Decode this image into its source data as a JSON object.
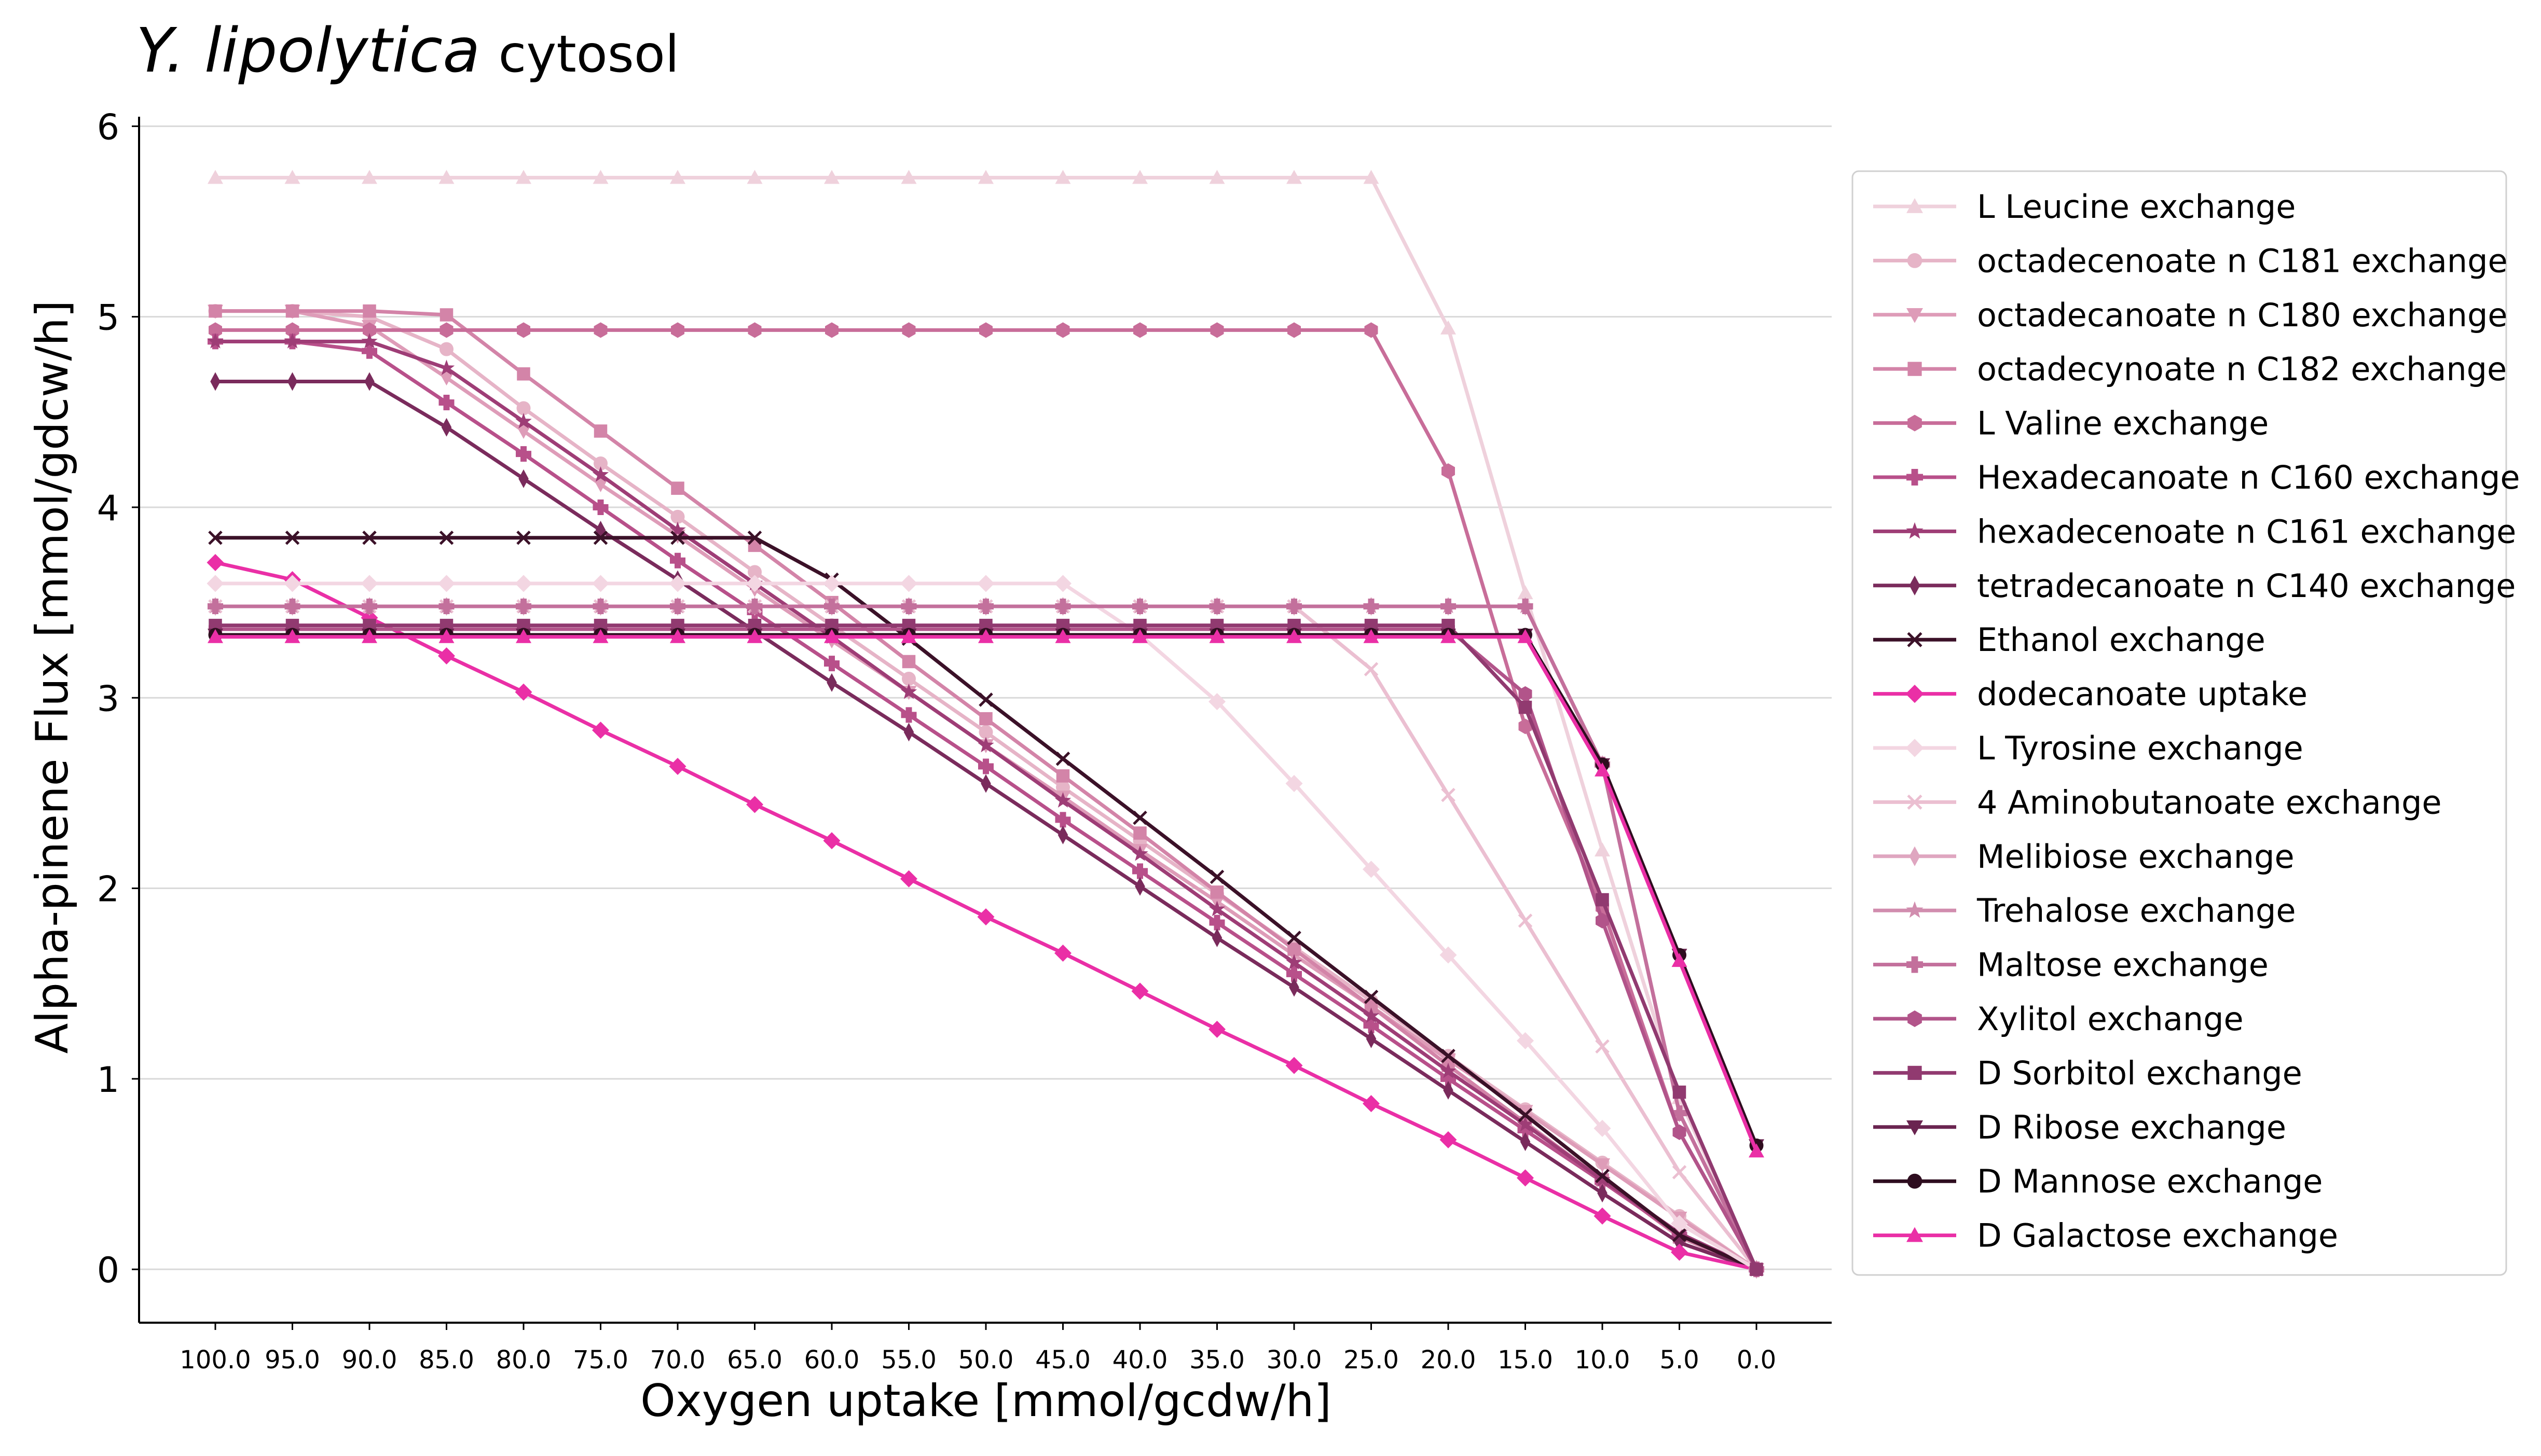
{
  "chart_data": {
    "type": "line",
    "title_species": "Y. lipolytica",
    "title_suffix": "cytosol",
    "xlabel": "Oxygen uptake [mmol/gcdw/h]",
    "ylabel": "Alpha-pinene Flux [mmol/gdcw/h]",
    "categories": [
      "100.0",
      "95.0",
      "90.0",
      "85.0",
      "80.0",
      "75.0",
      "70.0",
      "65.0",
      "60.0",
      "55.0",
      "50.0",
      "45.0",
      "40.0",
      "35.0",
      "30.0",
      "25.0",
      "20.0",
      "15.0",
      "10.0",
      "5.0",
      "0.0"
    ],
    "ylim": [
      -0.28,
      6.05
    ],
    "yticks": [
      "0",
      "1",
      "2",
      "3",
      "4",
      "5",
      "6"
    ],
    "grid": "horizontal",
    "legend_position": "right",
    "series": [
      {
        "name": "L Leucine exchange",
        "color": "#efd1dc",
        "marker": "triangle-up",
        "values": [
          5.73,
          5.73,
          5.73,
          5.73,
          5.73,
          5.73,
          5.73,
          5.73,
          5.73,
          5.73,
          5.73,
          5.73,
          5.73,
          5.73,
          5.73,
          5.73,
          4.94,
          3.55,
          2.2,
          0.9,
          0.0
        ]
      },
      {
        "name": "octadecenoate n C181 exchange",
        "color": "#e6b4c7",
        "marker": "circle",
        "values": [
          5.03,
          5.03,
          5.0,
          4.83,
          4.52,
          4.23,
          3.95,
          3.66,
          3.38,
          3.1,
          2.82,
          2.53,
          2.25,
          1.97,
          1.69,
          1.41,
          1.12,
          0.84,
          0.56,
          0.28,
          0.0
        ]
      },
      {
        "name": "octadecanoate n C180 exchange",
        "color": "#de9cb8",
        "marker": "triangle-down",
        "values": [
          5.03,
          5.03,
          4.95,
          4.68,
          4.4,
          4.12,
          3.85,
          3.57,
          3.3,
          3.03,
          2.75,
          2.48,
          2.2,
          1.93,
          1.65,
          1.38,
          1.1,
          0.83,
          0.55,
          0.27,
          0.0
        ]
      },
      {
        "name": "octadecynoate n C182 exchange",
        "color": "#d384a8",
        "marker": "square",
        "values": [
          5.03,
          5.03,
          5.03,
          5.01,
          4.7,
          4.4,
          4.1,
          3.8,
          3.5,
          3.19,
          2.89,
          2.59,
          2.29,
          1.98,
          1.68,
          1.38,
          1.07,
          0.77,
          0.47,
          0.17,
          0.0
        ]
      },
      {
        "name": "L Valine exchange",
        "color": "#c86d99",
        "marker": "hexagon",
        "values": [
          4.93,
          4.93,
          4.93,
          4.93,
          4.93,
          4.93,
          4.93,
          4.93,
          4.93,
          4.93,
          4.93,
          4.93,
          4.93,
          4.93,
          4.93,
          4.93,
          4.19,
          2.85,
          1.9,
          0.72,
          0.0
        ]
      },
      {
        "name": "Hexadecanoate n C160 exchange",
        "color": "#b8508a",
        "marker": "plus",
        "values": [
          4.87,
          4.87,
          4.82,
          4.55,
          4.28,
          4.0,
          3.72,
          3.45,
          3.18,
          2.91,
          2.64,
          2.36,
          2.09,
          1.82,
          1.55,
          1.28,
          1.0,
          0.73,
          0.46,
          0.18,
          0.0
        ]
      },
      {
        "name": "hexadecenoate n C161 exchange",
        "color": "#9e3d76",
        "marker": "star",
        "values": [
          4.87,
          4.87,
          4.87,
          4.73,
          4.45,
          4.17,
          3.88,
          3.6,
          3.32,
          3.03,
          2.75,
          2.46,
          2.18,
          1.89,
          1.61,
          1.33,
          1.04,
          0.76,
          0.47,
          0.19,
          0.0
        ]
      },
      {
        "name": "tetradecanoate n C140 exchange",
        "color": "#7a2b5c",
        "marker": "thin-diamond",
        "values": [
          4.66,
          4.66,
          4.66,
          4.42,
          4.15,
          3.88,
          3.62,
          3.35,
          3.08,
          2.82,
          2.55,
          2.28,
          2.01,
          1.74,
          1.48,
          1.21,
          0.94,
          0.67,
          0.4,
          0.14,
          0.0
        ]
      },
      {
        "name": "Ethanol exchange",
        "color": "#3b1128",
        "marker": "x",
        "values": [
          3.84,
          3.84,
          3.84,
          3.84,
          3.84,
          3.84,
          3.84,
          3.84,
          3.62,
          3.31,
          2.99,
          2.68,
          2.37,
          2.06,
          1.74,
          1.43,
          1.12,
          0.81,
          0.49,
          0.18,
          0.0
        ]
      },
      {
        "name": "dodecanoate uptake",
        "color": "#ea2fa6",
        "marker": "diamond",
        "values": [
          3.71,
          3.62,
          3.42,
          3.22,
          3.03,
          2.83,
          2.64,
          2.44,
          2.25,
          2.05,
          1.85,
          1.66,
          1.46,
          1.26,
          1.07,
          0.87,
          0.68,
          0.48,
          0.28,
          0.09,
          0.0
        ]
      },
      {
        "name": "L Tyrosine exchange",
        "color": "#f3d6e2",
        "marker": "diamond",
        "values": [
          3.6,
          3.6,
          3.6,
          3.6,
          3.6,
          3.6,
          3.6,
          3.6,
          3.6,
          3.6,
          3.6,
          3.6,
          3.33,
          2.98,
          2.55,
          2.1,
          1.65,
          1.2,
          0.74,
          0.24,
          0.0
        ]
      },
      {
        "name": "4 Aminobutanoate exchange",
        "color": "#ebbfd1",
        "marker": "x",
        "values": [
          3.48,
          3.48,
          3.48,
          3.48,
          3.48,
          3.48,
          3.48,
          3.48,
          3.48,
          3.48,
          3.48,
          3.48,
          3.48,
          3.48,
          3.48,
          3.15,
          2.49,
          1.83,
          1.17,
          0.51,
          0.0
        ]
      },
      {
        "name": "Melibiose exchange",
        "color": "#dfa6c0",
        "marker": "thin-diamond",
        "values": [
          3.48,
          3.48,
          3.48,
          3.48,
          3.48,
          3.48,
          3.48,
          3.48,
          3.48,
          3.48,
          3.48,
          3.48,
          3.48,
          3.48,
          3.48,
          3.48,
          3.48,
          3.48,
          2.65,
          0.82,
          0.0
        ]
      },
      {
        "name": "Trehalose exchange",
        "color": "#d18dae",
        "marker": "star",
        "values": [
          3.48,
          3.48,
          3.48,
          3.48,
          3.48,
          3.48,
          3.48,
          3.48,
          3.48,
          3.48,
          3.48,
          3.48,
          3.48,
          3.48,
          3.48,
          3.48,
          3.48,
          3.48,
          2.65,
          0.82,
          0.0
        ]
      },
      {
        "name": "Maltose exchange",
        "color": "#c3709c",
        "marker": "plus",
        "values": [
          3.48,
          3.48,
          3.48,
          3.48,
          3.48,
          3.48,
          3.48,
          3.48,
          3.48,
          3.48,
          3.48,
          3.48,
          3.48,
          3.48,
          3.48,
          3.48,
          3.48,
          3.48,
          2.65,
          0.82,
          0.0
        ]
      },
      {
        "name": "Xylitol exchange",
        "color": "#b2548a",
        "marker": "hexagon",
        "values": [
          3.36,
          3.36,
          3.36,
          3.36,
          3.36,
          3.36,
          3.36,
          3.36,
          3.36,
          3.36,
          3.36,
          3.36,
          3.36,
          3.36,
          3.36,
          3.36,
          3.36,
          3.02,
          1.83,
          0.72,
          0.0
        ]
      },
      {
        "name": "D Sorbitol exchange",
        "color": "#913a70",
        "marker": "square",
        "values": [
          3.38,
          3.38,
          3.38,
          3.38,
          3.38,
          3.38,
          3.38,
          3.38,
          3.38,
          3.38,
          3.38,
          3.38,
          3.38,
          3.38,
          3.38,
          3.38,
          3.38,
          2.95,
          1.94,
          0.93,
          0.0
        ]
      },
      {
        "name": "D Ribose exchange",
        "color": "#6a2450",
        "marker": "triangle-down",
        "values": [
          3.33,
          3.33,
          3.33,
          3.33,
          3.33,
          3.33,
          3.33,
          3.33,
          3.33,
          3.33,
          3.33,
          3.33,
          3.33,
          3.33,
          3.33,
          3.33,
          3.33,
          3.33,
          2.65,
          1.65,
          0.65
        ]
      },
      {
        "name": "D Mannose exchange",
        "color": "#2e0d1f",
        "marker": "circle",
        "values": [
          3.33,
          3.33,
          3.33,
          3.33,
          3.33,
          3.33,
          3.33,
          3.33,
          3.33,
          3.33,
          3.33,
          3.33,
          3.33,
          3.33,
          3.33,
          3.33,
          3.33,
          3.33,
          2.65,
          1.65,
          0.65
        ]
      },
      {
        "name": "D Galactose exchange",
        "color": "#ea2fa6",
        "marker": "triangle-up",
        "values": [
          3.32,
          3.32,
          3.32,
          3.32,
          3.32,
          3.32,
          3.32,
          3.32,
          3.32,
          3.32,
          3.32,
          3.32,
          3.32,
          3.32,
          3.32,
          3.32,
          3.32,
          3.32,
          2.62,
          1.62,
          0.62
        ]
      }
    ]
  }
}
